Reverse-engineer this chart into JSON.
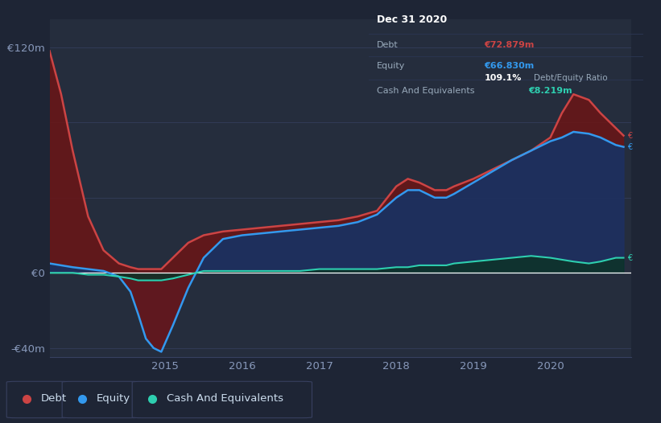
{
  "bg_color": "#1e2535",
  "plot_bg_color": "#252d3d",
  "grid_color": "#374060",
  "colors": {
    "debt": "#cc4444",
    "equity": "#3399ee",
    "cash": "#2ecfb0",
    "debt_fill": "#6b1515",
    "equity_fill": "#1e3060",
    "cash_fill": "#0d3328"
  },
  "ylim": [
    -45,
    135
  ],
  "years": [
    2013.5,
    2013.65,
    2013.8,
    2014.0,
    2014.2,
    2014.4,
    2014.55,
    2014.65,
    2014.75,
    2014.85,
    2014.95,
    2015.1,
    2015.3,
    2015.5,
    2015.75,
    2016.0,
    2016.25,
    2016.5,
    2016.75,
    2017.0,
    2017.25,
    2017.5,
    2017.75,
    2018.0,
    2018.15,
    2018.3,
    2018.5,
    2018.65,
    2018.75,
    2019.0,
    2019.25,
    2019.5,
    2019.75,
    2020.0,
    2020.15,
    2020.3,
    2020.5,
    2020.65,
    2020.85,
    2020.95
  ],
  "debt": [
    118,
    95,
    65,
    30,
    12,
    5,
    3,
    2,
    2,
    2,
    2,
    8,
    16,
    20,
    22,
    23,
    24,
    25,
    26,
    27,
    28,
    30,
    33,
    46,
    50,
    48,
    44,
    44,
    46,
    50,
    55,
    60,
    65,
    72,
    85,
    95,
    92,
    85,
    77,
    73
  ],
  "equity": [
    5,
    4,
    3,
    2,
    1,
    -2,
    -10,
    -22,
    -35,
    -40,
    -42,
    -28,
    -8,
    8,
    18,
    20,
    21,
    22,
    23,
    24,
    25,
    27,
    31,
    40,
    44,
    44,
    40,
    40,
    42,
    48,
    54,
    60,
    65,
    70,
    72,
    75,
    74,
    72,
    68,
    67
  ],
  "cash": [
    0,
    0,
    0,
    -1,
    -1,
    -2,
    -3,
    -4,
    -4,
    -4,
    -4,
    -3,
    -1,
    1,
    1,
    1,
    1,
    1,
    1,
    2,
    2,
    2,
    2,
    3,
    3,
    4,
    4,
    4,
    5,
    6,
    7,
    8,
    9,
    8,
    7,
    6,
    5,
    6,
    8,
    8
  ],
  "info_box": {
    "date": "Dec 31 2020",
    "debt_label": "Debt",
    "debt_value": "€72.879m",
    "equity_label": "Equity",
    "equity_value": "€66.830m",
    "ratio": "109.1%",
    "ratio_text": "Debt/Equity Ratio",
    "cash_label": "Cash And Equivalents",
    "cash_value": "€8.219m"
  },
  "legend": [
    {
      "label": "Debt",
      "color": "#cc4444"
    },
    {
      "label": "Equity",
      "color": "#3399ee"
    },
    {
      "label": "Cash And Equivalents",
      "color": "#2ecfb0"
    }
  ],
  "xticks": [
    2015,
    2016,
    2017,
    2018,
    2019,
    2020
  ],
  "yticks": [
    -40,
    0,
    120
  ],
  "ytick_labels": [
    "-€40m",
    "€0",
    "€120m"
  ]
}
